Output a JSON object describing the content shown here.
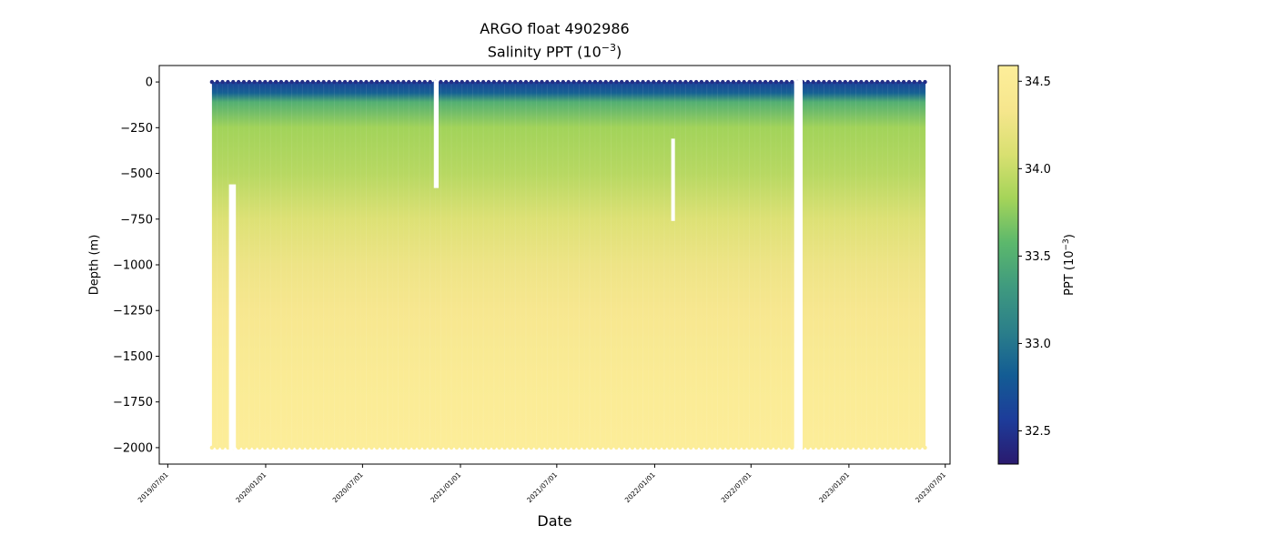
{
  "chart_data": {
    "type": "heatmap",
    "title": "ARGO float 4902986",
    "subtitle_prefix": "Salinity PPT (10",
    "subtitle_exp": "−3",
    "subtitle_suffix": ")",
    "xlabel": "Date",
    "ylabel": "Depth (m)",
    "colorbar_label_prefix": "PPT (10",
    "colorbar_label_exp": "−3",
    "colorbar_label_suffix": ")",
    "colormap": "haline",
    "colormap_stops": [
      "#2a1a6e",
      "#1d3c9a",
      "#135c94",
      "#2b7f8a",
      "#3f9a7f",
      "#5cb86c",
      "#a5d459",
      "#d9e071",
      "#f6e68d",
      "#fdee9a"
    ],
    "xlim": [
      "2019-06-15",
      "2023-07-10"
    ],
    "ylim": [
      -2090,
      90
    ],
    "x_ticks": [
      "2019-07-01",
      "2020-01-01",
      "2020-07-01",
      "2021-01-01",
      "2021-07-01",
      "2022-01-01",
      "2022-07-01",
      "2023-01-01",
      "2023-07-01"
    ],
    "x_tick_labels": [
      "2019/07/01",
      "2020/01/01",
      "2020/07/01",
      "2021/01/01",
      "2021/07/01",
      "2022/01/01",
      "2022/07/01",
      "2023/01/01",
      "2023/07/01"
    ],
    "y_ticks": [
      0,
      -250,
      -500,
      -750,
      -1000,
      -1250,
      -1500,
      -1750,
      -2000
    ],
    "y_tick_labels": [
      "0",
      "−250",
      "−500",
      "−750",
      "−1000",
      "−1250",
      "−1500",
      "−1750",
      "−2000"
    ],
    "colorbar_range": [
      32.31,
      34.59
    ],
    "colorbar_ticks": [
      32.5,
      33.0,
      33.5,
      34.0,
      34.5
    ],
    "colorbar_tick_labels": [
      "32.5",
      "33.0",
      "33.5",
      "34.0",
      "34.5"
    ],
    "profile_start": "2019-09-22",
    "profile_end": "2023-05-25",
    "profile_interval_days": 10,
    "depth_range": [
      0,
      -2000
    ],
    "salinity_profile": [
      {
        "depth": 0,
        "value": 32.6
      },
      {
        "depth": -60,
        "value": 32.85
      },
      {
        "depth": -110,
        "value": 33.5
      },
      {
        "depth": -250,
        "value": 33.82
      },
      {
        "depth": -500,
        "value": 33.92
      },
      {
        "depth": -750,
        "value": 34.12
      },
      {
        "depth": -1000,
        "value": 34.27
      },
      {
        "depth": -1250,
        "value": 34.37
      },
      {
        "depth": -1500,
        "value": 34.45
      },
      {
        "depth": -1750,
        "value": 34.52
      },
      {
        "depth": -2000,
        "value": 34.57
      }
    ],
    "data_gaps": [
      {
        "start": "2019-10-24",
        "end": "2019-11-06",
        "depth_top": -570,
        "depth_bottom": -2000
      },
      {
        "start": "2020-11-12",
        "end": "2020-11-21",
        "depth_top": 0,
        "depth_bottom": -570
      },
      {
        "start": "2022-02-01",
        "end": "2022-02-08",
        "depth_top": -320,
        "depth_bottom": -750
      },
      {
        "start": "2022-09-20",
        "end": "2022-10-06",
        "depth_top": 0,
        "depth_bottom": -2000
      }
    ]
  }
}
